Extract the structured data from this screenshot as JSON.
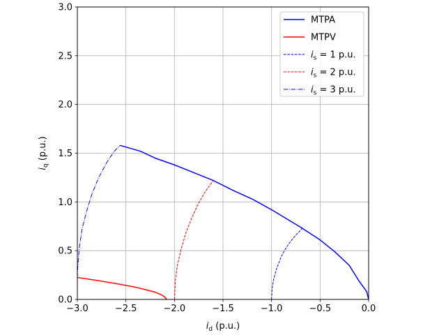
{
  "chart_data": {
    "type": "line",
    "xlabel": {
      "main": "i",
      "sub": "d",
      "unit": " (p.u.)"
    },
    "ylabel": {
      "main": "i",
      "sub": "q",
      "unit": " (p.u.)"
    },
    "xlim": [
      -3.0,
      0.0
    ],
    "ylim": [
      0.0,
      3.0
    ],
    "xticks": [
      -3.0,
      -2.5,
      -2.0,
      -1.5,
      -1.0,
      -0.5,
      0.0
    ],
    "yticks": [
      0.0,
      0.5,
      1.0,
      1.5,
      2.0,
      2.5,
      3.0
    ],
    "xtick_labels": [
      "−3.0",
      "−2.5",
      "−2.0",
      "−1.5",
      "−1.0",
      "−0.5",
      "0.0"
    ],
    "ytick_labels": [
      "0.0",
      "0.5",
      "1.0",
      "1.5",
      "2.0",
      "2.5",
      "3.0"
    ],
    "grid": true,
    "legend_position": "top-right",
    "series": [
      {
        "name": "MTPA",
        "color": "#0000ff",
        "style": "solid",
        "x": [
          0.0,
          -0.02,
          -0.1,
          -0.2,
          -0.35,
          -0.5,
          -0.7,
          -0.9,
          -1.0,
          -1.2,
          -1.4,
          -1.6,
          -1.8,
          -2.0,
          -2.2,
          -2.35,
          -2.56
        ],
        "y": [
          0.0,
          0.08,
          0.19,
          0.35,
          0.49,
          0.61,
          0.74,
          0.86,
          0.92,
          1.03,
          1.12,
          1.22,
          1.3,
          1.38,
          1.45,
          1.52,
          1.58
        ]
      },
      {
        "name": "MTPV",
        "color": "#ff0000",
        "style": "solid",
        "x": [
          -3.0,
          -2.8,
          -2.6,
          -2.4,
          -2.3,
          -2.2,
          -2.14,
          -2.1,
          -2.08
        ],
        "y": [
          0.225,
          0.195,
          0.162,
          0.125,
          0.1,
          0.075,
          0.05,
          0.025,
          0.0
        ]
      },
      {
        "name_prefix": "i",
        "name_sub": "s",
        "name_suffix": " =  1 p.u.",
        "color": "#0000ff",
        "style": "dashed",
        "x": [
          -1.0,
          -0.995,
          -0.98,
          -0.95,
          -0.9,
          -0.85,
          -0.8,
          -0.75,
          -0.7,
          -0.68
        ],
        "y": [
          0.0,
          0.1,
          0.2,
          0.31,
          0.44,
          0.53,
          0.6,
          0.66,
          0.71,
          0.735
        ]
      },
      {
        "name_prefix": "i",
        "name_sub": "s",
        "name_suffix": " =  2 p.u.",
        "color": "#ff0000",
        "style": "dashed",
        "x": [
          -2.0,
          -1.99,
          -1.97,
          -1.93,
          -1.88,
          -1.82,
          -1.75,
          -1.68,
          -1.6
        ],
        "y": [
          0.0,
          0.2,
          0.35,
          0.52,
          0.69,
          0.84,
          0.99,
          1.11,
          1.22
        ]
      },
      {
        "name_prefix": "i",
        "name_sub": "s",
        "name_suffix": " =  3 p.u.",
        "color": "#0000ff",
        "style": "dashdot",
        "x": [
          -3.0,
          -2.995,
          -2.98,
          -2.95,
          -2.9,
          -2.85,
          -2.78,
          -2.7,
          -2.62,
          -2.56
        ],
        "y": [
          0.225,
          0.35,
          0.53,
          0.73,
          0.92,
          1.08,
          1.25,
          1.4,
          1.52,
          1.58
        ]
      }
    ]
  }
}
